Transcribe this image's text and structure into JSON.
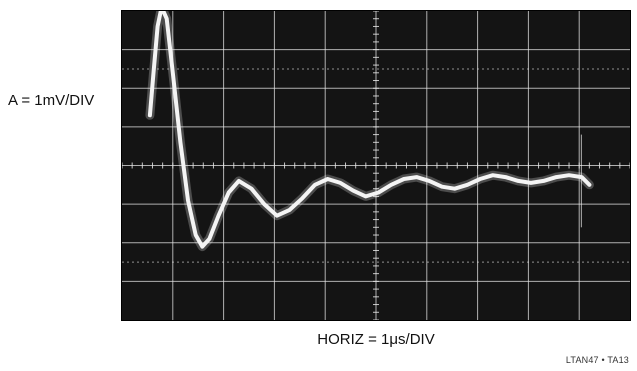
{
  "chart_data": {
    "type": "line",
    "title": "",
    "ylabel": "A = 1mV/DIV",
    "xlabel": "HORIZ = 1μs/DIV",
    "divisions": {
      "x": 10,
      "y": 8
    },
    "xlim": [
      0,
      10
    ],
    "ylim": [
      -4,
      4
    ],
    "grid": true,
    "series": [
      {
        "x": [
          0.55,
          0.62,
          0.7,
          0.78,
          0.88,
          1.0,
          1.15,
          1.3,
          1.45,
          1.58,
          1.72,
          1.9,
          2.1,
          2.3,
          2.55,
          2.8,
          3.05,
          3.3,
          3.55,
          3.8,
          4.05,
          4.3,
          4.55,
          4.8,
          5.05,
          5.3,
          5.55,
          5.8,
          6.05,
          6.3,
          6.55,
          6.8,
          7.05,
          7.3,
          7.55,
          7.8,
          8.05,
          8.3,
          8.55,
          8.8,
          9.05,
          9.2
        ],
        "values": [
          1.3,
          2.4,
          3.6,
          4.1,
          3.8,
          2.4,
          0.6,
          -0.9,
          -1.8,
          -2.1,
          -1.9,
          -1.3,
          -0.7,
          -0.4,
          -0.6,
          -1.0,
          -1.3,
          -1.15,
          -0.85,
          -0.5,
          -0.35,
          -0.45,
          -0.65,
          -0.8,
          -0.7,
          -0.5,
          -0.35,
          -0.3,
          -0.4,
          -0.55,
          -0.6,
          -0.5,
          -0.35,
          -0.25,
          -0.3,
          -0.4,
          -0.45,
          -0.4,
          -0.3,
          -0.25,
          -0.3,
          -0.5
        ]
      }
    ]
  },
  "figure_id": "LTAN47 • TA13",
  "colors": {
    "screen": "#141414",
    "graticule": "#e6e6e6",
    "trace": "#f4f4f4"
  }
}
